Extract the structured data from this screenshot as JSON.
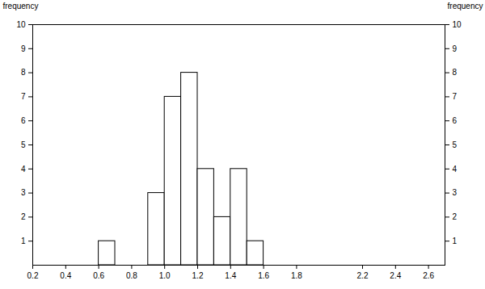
{
  "chart_data": {
    "type": "histogram",
    "ylabel": "frequency",
    "bins": [
      0.6,
      0.7,
      0.8,
      0.9,
      1.0,
      1.1,
      1.2,
      1.3,
      1.4,
      1.5,
      1.6
    ],
    "values": [
      1,
      0,
      0,
      3,
      7,
      8,
      4,
      2,
      4,
      1
    ],
    "color": "#000000",
    "xlim": [
      0.2,
      2.7
    ],
    "xticks": [
      0.2,
      0.4,
      0.6,
      0.8,
      {
        "value": 1,
        "label": "1.0"
      },
      1.2,
      1.4,
      1.6,
      1.8,
      2.2,
      2.4,
      2.6
    ],
    "ylim": [
      0,
      10
    ],
    "yticks": [
      1,
      2,
      3,
      4,
      5,
      6,
      7,
      8,
      9,
      10
    ]
  }
}
